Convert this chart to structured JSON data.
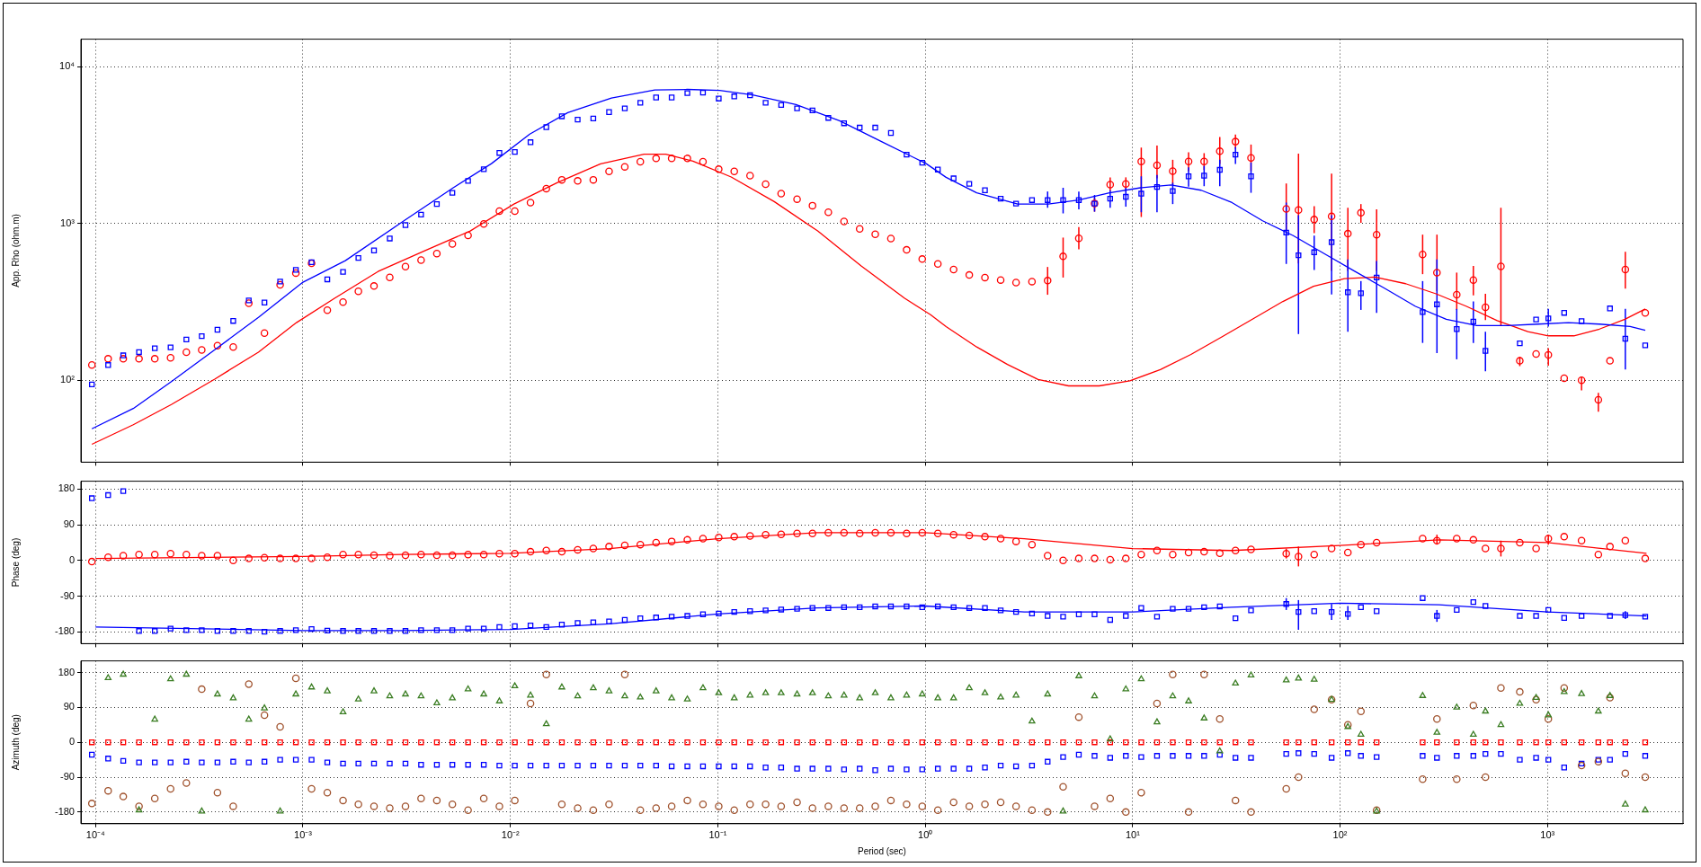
{
  "chart_data": [
    {
      "type": "scatter",
      "ylabel": "App. Rho (ohm.m)",
      "log": "xy",
      "grid": true,
      "tick_labels": "y",
      "xlim": [
        8.5e-05,
        4500
      ],
      "xticks": [
        {
          "value": 0.0001,
          "label": null
        },
        {
          "value": 0.001,
          "label": null
        },
        {
          "value": 0.01,
          "label": null
        },
        {
          "value": 0.1,
          "label": null
        },
        {
          "value": 1,
          "label": null
        },
        {
          "value": 10,
          "label": null
        },
        {
          "value": 100,
          "label": null
        },
        {
          "value": 1000,
          "label": null
        }
      ],
      "ylim": [
        30,
        15000
      ],
      "yticks": [
        {
          "value": 100,
          "label": "10²"
        },
        {
          "value": 1000,
          "label": "10³"
        },
        {
          "value": 10000,
          "label": "10⁴"
        }
      ],
      "x": [
        9.6e-05,
        0.000115,
        0.000136,
        0.000162,
        0.000193,
        0.00023,
        0.000274,
        0.000325,
        0.000387,
        0.000461,
        0.000548,
        0.000652,
        0.000776,
        0.000924,
        0.0011,
        0.00131,
        0.00156,
        0.00185,
        0.0022,
        0.00262,
        0.00312,
        0.00371,
        0.00442,
        0.00525,
        0.00625,
        0.00744,
        0.00885,
        0.0105,
        0.0125,
        0.0149,
        0.0177,
        0.0211,
        0.0251,
        0.0299,
        0.0356,
        0.0423,
        0.0504,
        0.0599,
        0.0713,
        0.0848,
        0.101,
        0.12,
        0.143,
        0.17,
        0.202,
        0.241,
        0.286,
        0.341,
        0.406,
        0.483,
        0.574,
        0.683,
        0.813,
        0.967,
        1.15,
        1.37,
        1.63,
        1.94,
        2.31,
        2.74,
        3.27,
        3.89,
        4.62,
        5.5,
        6.55,
        7.79,
        9.27,
        11,
        13.1,
        15.6,
        18.6,
        22.1,
        26.3,
        31.3,
        37.2,
        55,
        63,
        75,
        91,
        109,
        126,
        150,
        250,
        293,
        365,
        439,
        502,
        596,
        735,
        881,
        1009,
        1203,
        1459,
        1758,
        2000,
        2372,
        2958
      ],
      "series": [
        {
          "type": "line",
          "color": "#0000ff",
          "marker": "none",
          "x": [
            9.6e-05,
            0.000152,
            0.000232,
            0.000377,
            0.00061,
            0.001,
            0.0016,
            0.0031,
            0.0053,
            0.0081,
            0.0124,
            0.0189,
            0.0307,
            0.0497,
            0.0713,
            0.102,
            0.147,
            0.238,
            0.386,
            0.625,
            1.01,
            1.26,
            1.77,
            2.79,
            3.92,
            5.5,
            7.73,
            10.9,
            15.3,
            21.4,
            30.1,
            42.3,
            59.4,
            83.4,
            117,
            165,
            231,
            325,
            456,
            641,
            900,
            1260,
            1780,
            2500,
            2960
          ],
          "values": [
            49,
            66,
            98,
            157,
            252,
            422,
            579,
            1050,
            1690,
            2410,
            3720,
            5100,
            6320,
            7120,
            7170,
            7060,
            6620,
            5740,
            4530,
            3300,
            2410,
            1970,
            1570,
            1330,
            1330,
            1410,
            1570,
            1690,
            1760,
            1630,
            1360,
            1040,
            837,
            645,
            498,
            384,
            296,
            245,
            223,
            223,
            228,
            233,
            228,
            220,
            208
          ]
        },
        {
          "type": "line",
          "color": "#ff0000",
          "marker": "none",
          "x": [
            9.6e-05,
            0.000152,
            0.000232,
            0.000377,
            0.00061,
            0.00093,
            0.00142,
            0.0023,
            0.00395,
            0.0064,
            0.0104,
            0.0168,
            0.0272,
            0.0441,
            0.0561,
            0.0759,
            0.116,
            0.187,
            0.303,
            0.491,
            0.796,
            1.06,
            1.26,
            1.77,
            2.49,
            3.5,
            4.91,
            6.9,
            9.69,
            13.6,
            19.1,
            26.9,
            37.8,
            53,
            74.5,
            105,
            147,
            207,
            290,
            407,
            572,
            804,
            1010,
            1340,
            1780,
            2360,
            2960
          ],
          "values": [
            39,
            52,
            70,
            102,
            151,
            233,
            333,
            494,
            679,
            896,
            1330,
            1820,
            2400,
            2770,
            2770,
            2500,
            1980,
            1380,
            896,
            536,
            333,
            262,
            220,
            163,
            126,
            101,
            92,
            92,
            99,
            117,
            146,
            189,
            245,
            318,
            398,
            445,
            455,
            413,
            356,
            296,
            240,
            204,
            192,
            192,
            212,
            245,
            285
          ]
        },
        {
          "color": "#0000ff",
          "marker": "square",
          "values": [
            94,
            125,
            144,
            151,
            160,
            162,
            182,
            191,
            210,
            239,
            323,
            313,
            426,
            506,
            566,
            440,
            491,
            603,
            673,
            802,
            977,
            1140,
            1330,
            1570,
            1870,
            2220,
            2820,
            2860,
            3300,
            4120,
            4830,
            4600,
            4680,
            5140,
            5430,
            5890,
            6370,
            6370,
            6790,
            6840,
            6270,
            6470,
            6580,
            5890,
            5700,
            5430,
            5270,
            4720,
            4360,
            4090,
            4090,
            3780,
            2750,
            2440,
            2210,
            1940,
            1790,
            1630,
            1440,
            1340,
            1410,
            1410,
            1410,
            1410,
            1340,
            1440,
            1480,
            1550,
            1710,
            1610,
            2000,
            2020,
            2200,
            2750,
            2000,
            875,
            627,
            655,
            760,
            364,
            359,
            452,
            272,
            305,
            212,
            237,
            154,
            null,
            172,
            244,
            248,
            269,
            238,
            null,
            287,
            184,
            167
          ],
          "errors": [
            null,
            null,
            null,
            null,
            null,
            null,
            null,
            null,
            null,
            null,
            null,
            null,
            null,
            null,
            null,
            null,
            null,
            null,
            null,
            null,
            null,
            null,
            null,
            null,
            null,
            null,
            null,
            null,
            null,
            null,
            null,
            null,
            null,
            null,
            null,
            null,
            null,
            null,
            null,
            null,
            null,
            null,
            null,
            null,
            null,
            null,
            null,
            null,
            null,
            null,
            null,
            null,
            null,
            null,
            null,
            null,
            null,
            null,
            null,
            null,
            null,
            [
              1260,
              1600
            ],
            [
              1160,
              1690
            ],
            [
              1230,
              1600
            ],
            [
              1190,
              1520
            ],
            [
              1260,
              1630
            ],
            [
              1280,
              1690
            ],
            [
              1180,
              2000
            ],
            [
              1180,
              2040
            ],
            [
              1330,
              1820
            ],
            [
              1720,
              2280
            ],
            [
              1730,
              2330
            ],
            [
              1730,
              2550
            ],
            [
              2400,
              3070
            ],
            [
              1570,
              2450
            ],
            [
              552,
              1360
            ],
            [
              197,
              1130
            ],
            [
              505,
              837
            ],
            [
              353,
              1130
            ],
            [
              204,
              590
            ],
            [
              281,
              429
            ],
            [
              269,
              577
            ],
            [
              173,
              429
            ],
            [
              149,
              590
            ],
            [
              136,
              285
            ],
            [
              173,
              318
            ],
            [
              114,
              204
            ],
            null,
            null,
            null,
            [
              220,
              285
            ],
            null,
            null,
            null,
            null,
            [
              117,
              285
            ],
            null
          ]
        },
        {
          "color": "#ff0000",
          "marker": "circle",
          "values": [
            125,
            137,
            137,
            137,
            137,
            139,
            151,
            156,
            166,
            163,
            310,
            200,
            406,
            483,
            557,
            280,
            315,
            369,
            399,
            453,
            531,
            584,
            643,
            740,
            840,
            993,
            1200,
            1200,
            1360,
            1670,
            1900,
            1870,
            1900,
            2150,
            2300,
            2480,
            2600,
            2600,
            2600,
            2480,
            2220,
            2150,
            2020,
            1780,
            1550,
            1430,
            1300,
            1180,
            1030,
            924,
            853,
            802,
            679,
            593,
            552,
            508,
            469,
            452,
            436,
            420,
            426,
            432,
            617,
            805,
            1340,
            1770,
            1790,
            2490,
            2350,
            2160,
            2490,
            2490,
            2890,
            3330,
            2620,
            1240,
            1220,
            1060,
            1110,
            861,
            1170,
            849,
            635,
            486,
            351,
            436,
            292,
            532,
            133,
            147,
            145,
            103,
            100,
            75,
            133,
            508,
            269
          ],
          "errors": [
            null,
            null,
            null,
            null,
            null,
            null,
            null,
            null,
            null,
            null,
            null,
            null,
            null,
            null,
            null,
            null,
            null,
            null,
            null,
            null,
            null,
            null,
            null,
            null,
            null,
            null,
            null,
            null,
            null,
            null,
            null,
            null,
            null,
            null,
            null,
            null,
            null,
            null,
            null,
            null,
            null,
            null,
            null,
            null,
            null,
            null,
            null,
            null,
            null,
            null,
            null,
            null,
            null,
            null,
            null,
            null,
            null,
            null,
            null,
            null,
            null,
            [
              351,
              528
            ],
            [
              452,
              813
            ],
            [
              684,
              948
            ],
            [
              1190,
              1460
            ],
            [
              1610,
              1970
            ],
            [
              1610,
              1970
            ],
            [
              1100,
              3050
            ],
            [
              1940,
              3140
            ],
            [
              1760,
              2550
            ],
            [
              2160,
              2850
            ],
            [
              2200,
              2810
            ],
            [
              2400,
              3560
            ],
            [
              3000,
              3700
            ],
            [
              2160,
              3190
            ],
            [
              888,
              1800
            ],
            [
              556,
              2790
            ],
            [
              869,
              1290
            ],
            [
              498,
              2080
            ],
            [
              498,
              1260
            ],
            [
              1010,
              1330
            ],
            [
              498,
              1230
            ],
            [
              475,
              849
            ],
            [
              370,
              849
            ],
            [
              281,
              486
            ],
            [
              348,
              536
            ],
            [
              242,
              356
            ],
            [
              223,
              1260
            ],
            [
              123,
              141
            ],
            null,
            [
              124,
              160
            ],
            null,
            [
              86,
              105
            ],
            [
              63,
              83
            ],
            null,
            [
              384,
              659
            ],
            null
          ]
        }
      ]
    },
    {
      "type": "scatter",
      "ylabel": "Phase (deg)",
      "log": "x",
      "grid": true,
      "tick_labels": "y",
      "xlim": [
        8.5e-05,
        4500
      ],
      "xticks": [
        {
          "value": 0.0001,
          "label": null
        },
        {
          "value": 0.001,
          "label": null
        },
        {
          "value": 0.01,
          "label": null
        },
        {
          "value": 0.1,
          "label": null
        },
        {
          "value": 1,
          "label": null
        },
        {
          "value": 10,
          "label": null
        },
        {
          "value": 100,
          "label": null
        },
        {
          "value": 1000,
          "label": null
        }
      ],
      "ylim": [
        -210,
        200
      ],
      "yticks": [
        -180,
        -90,
        0,
        90,
        180
      ],
      "x": [
        9.6e-05,
        0.000115,
        0.000136,
        0.000162,
        0.000193,
        0.00023,
        0.000274,
        0.000325,
        0.000387,
        0.000461,
        0.000548,
        0.000652,
        0.000776,
        0.000924,
        0.0011,
        0.00131,
        0.00156,
        0.00185,
        0.0022,
        0.00262,
        0.00312,
        0.00371,
        0.00442,
        0.00525,
        0.00625,
        0.00744,
        0.00885,
        0.0105,
        0.0125,
        0.0149,
        0.0177,
        0.0211,
        0.0251,
        0.0299,
        0.0356,
        0.0423,
        0.0504,
        0.0599,
        0.0713,
        0.0848,
        0.101,
        0.12,
        0.143,
        0.17,
        0.202,
        0.241,
        0.286,
        0.341,
        0.406,
        0.483,
        0.574,
        0.683,
        0.813,
        0.967,
        1.15,
        1.37,
        1.63,
        1.94,
        2.31,
        2.74,
        3.27,
        3.89,
        4.62,
        5.5,
        6.55,
        7.79,
        9.27,
        11,
        13.1,
        15.6,
        18.6,
        22.1,
        26.3,
        31.3,
        37.2,
        55,
        63,
        75,
        91,
        109,
        126,
        150,
        250,
        293,
        365,
        439,
        502,
        596,
        735,
        881,
        1009,
        1203,
        1459,
        1758,
        2000,
        2372,
        2958
      ],
      "series": [
        {
          "type": "line",
          "color": "#ff0000",
          "marker": "none",
          "x": [
            0.0001,
            0.001,
            0.003,
            0.01,
            0.03,
            0.1,
            0.3,
            1,
            3,
            10,
            30,
            100,
            300,
            1000,
            3000
          ],
          "values": [
            5,
            10,
            15,
            18,
            30,
            55,
            70,
            70,
            55,
            30,
            25,
            38,
            52,
            45,
            18
          ]
        },
        {
          "type": "line",
          "color": "#0000ff",
          "marker": "none",
          "x": [
            0.0001,
            0.001,
            0.003,
            0.01,
            0.03,
            0.1,
            0.3,
            1,
            3,
            10,
            30,
            100,
            300,
            1000,
            3000
          ],
          "values": [
            -168,
            -177,
            -177,
            -174,
            -160,
            -135,
            -120,
            -115,
            -130,
            -130,
            -118,
            -108,
            -112,
            -130,
            -140
          ]
        },
        {
          "color": "#ff0000",
          "marker": "circle",
          "values": [
            -3,
            8,
            12,
            15,
            15,
            17,
            15,
            12,
            12,
            0,
            5,
            7,
            5,
            5,
            5,
            8,
            15,
            15,
            13,
            12,
            13,
            15,
            13,
            13,
            15,
            15,
            17,
            17,
            22,
            25,
            22,
            27,
            30,
            35,
            38,
            40,
            45,
            48,
            52,
            55,
            58,
            60,
            62,
            65,
            66,
            68,
            68,
            70,
            70,
            68,
            70,
            70,
            68,
            70,
            68,
            65,
            63,
            60,
            55,
            48,
            40,
            12,
            0,
            5,
            5,
            2,
            5,
            15,
            25,
            15,
            20,
            22,
            18,
            25,
            28,
            17,
            10,
            15,
            30,
            20,
            40,
            45,
            55,
            50,
            55,
            52,
            30,
            30,
            45,
            30,
            55,
            60,
            50,
            15,
            35,
            50,
            5
          ],
          "errors": [
            null,
            null,
            null,
            null,
            null,
            null,
            null,
            null,
            null,
            null,
            null,
            null,
            null,
            null,
            null,
            null,
            null,
            null,
            null,
            null,
            null,
            null,
            null,
            null,
            null,
            null,
            null,
            null,
            null,
            null,
            null,
            null,
            null,
            null,
            null,
            null,
            null,
            null,
            null,
            null,
            null,
            null,
            null,
            null,
            null,
            null,
            null,
            null,
            null,
            null,
            null,
            null,
            null,
            null,
            null,
            null,
            null,
            null,
            null,
            null,
            null,
            null,
            null,
            null,
            null,
            null,
            null,
            null,
            null,
            null,
            null,
            null,
            null,
            null,
            null,
            [
              5,
              30
            ],
            [
              -15,
              35
            ],
            null,
            null,
            null,
            null,
            null,
            null,
            [
              40,
              65
            ],
            null,
            null,
            null,
            [
              10,
              50
            ],
            null,
            null,
            [
              40,
              65
            ],
            null,
            null,
            null,
            null,
            null,
            null
          ]
        },
        {
          "color": "#0000ff",
          "marker": "square",
          "values": [
            157,
            165,
            175,
            -178,
            -178,
            -172,
            -176,
            -176,
            -178,
            -178,
            -178,
            -180,
            -178,
            -176,
            -173,
            -177,
            -178,
            -178,
            -178,
            -178,
            -178,
            -176,
            -176,
            -176,
            -172,
            -172,
            -168,
            -166,
            -164,
            -168,
            -162,
            -158,
            -156,
            -154,
            -150,
            -146,
            -144,
            -142,
            -140,
            -136,
            -134,
            -130,
            -128,
            -126,
            -124,
            -122,
            -120,
            -120,
            -118,
            -118,
            -116,
            -116,
            -116,
            -118,
            -116,
            -118,
            -120,
            -120,
            -126,
            -130,
            -134,
            -140,
            -142,
            -136,
            -136,
            -150,
            -140,
            -120,
            -142,
            -122,
            -122,
            -118,
            -116,
            -146,
            -126,
            -110,
            -130,
            -128,
            -130,
            -135,
            -118,
            -128,
            -95,
            -140,
            -125,
            -105,
            -115,
            null,
            -140,
            -140,
            -125,
            -145,
            -140,
            null,
            -140,
            -138,
            -142
          ],
          "errors": [
            null,
            null,
            null,
            null,
            null,
            null,
            null,
            null,
            null,
            null,
            null,
            null,
            null,
            null,
            null,
            null,
            null,
            null,
            null,
            null,
            null,
            null,
            null,
            null,
            null,
            null,
            null,
            null,
            null,
            null,
            null,
            null,
            null,
            null,
            null,
            null,
            null,
            null,
            null,
            null,
            null,
            null,
            null,
            null,
            null,
            null,
            null,
            null,
            null,
            null,
            null,
            null,
            null,
            null,
            null,
            null,
            null,
            null,
            null,
            null,
            null,
            null,
            null,
            null,
            null,
            null,
            null,
            null,
            null,
            null,
            null,
            null,
            null,
            null,
            null,
            [
              -125,
              -95
            ],
            [
              -175,
              -100
            ],
            null,
            [
              -150,
              -110
            ],
            [
              -150,
              -115
            ],
            null,
            null,
            null,
            [
              -155,
              -125
            ],
            null,
            null,
            null,
            null,
            null,
            null,
            null,
            null,
            null,
            null,
            null,
            [
              -148,
              -128
            ],
            null
          ]
        }
      ]
    },
    {
      "type": "scatter",
      "ylabel": "Azimuth (deg)",
      "xlabel": "Period (sec)",
      "log": "x",
      "grid": true,
      "xlim": [
        8.5e-05,
        4500
      ],
      "xticks": [
        {
          "value": 0.0001,
          "label": "10⁻⁴"
        },
        {
          "value": 0.001,
          "label": "10⁻³"
        },
        {
          "value": 0.01,
          "label": "10⁻²"
        },
        {
          "value": 0.1,
          "label": "10⁻¹"
        },
        {
          "value": 1,
          "label": "10⁰"
        },
        {
          "value": 10,
          "label": "10¹"
        },
        {
          "value": 100,
          "label": "10²"
        },
        {
          "value": 1000,
          "label": "10³"
        }
      ],
      "ylim": [
        -210,
        210
      ],
      "yticks": [
        -180,
        -90,
        0,
        90,
        180
      ],
      "x": [
        9.6e-05,
        0.000115,
        0.000136,
        0.000162,
        0.000193,
        0.00023,
        0.000274,
        0.000325,
        0.000387,
        0.000461,
        0.000548,
        0.000652,
        0.000776,
        0.000924,
        0.0011,
        0.00131,
        0.00156,
        0.00185,
        0.0022,
        0.00262,
        0.00312,
        0.00371,
        0.00442,
        0.00525,
        0.00625,
        0.00744,
        0.00885,
        0.0105,
        0.0125,
        0.0149,
        0.0177,
        0.0211,
        0.0251,
        0.0299,
        0.0356,
        0.0423,
        0.0504,
        0.0599,
        0.0713,
        0.0848,
        0.101,
        0.12,
        0.143,
        0.17,
        0.202,
        0.241,
        0.286,
        0.341,
        0.406,
        0.483,
        0.574,
        0.683,
        0.813,
        0.967,
        1.15,
        1.37,
        1.63,
        1.94,
        2.31,
        2.74,
        3.27,
        3.89,
        4.62,
        5.5,
        6.55,
        7.79,
        9.27,
        11,
        13.1,
        15.6,
        18.6,
        22.1,
        26.3,
        31.3,
        37.2,
        55,
        63,
        75,
        91,
        109,
        126,
        150,
        250,
        293,
        365,
        439,
        502,
        596,
        735,
        881,
        1009,
        1203,
        1459,
        1758,
        2000,
        2372,
        2958
      ],
      "series": [
        {
          "color": "#3a7d22",
          "marker": "triangle",
          "values": [
            null,
            166,
            175,
            -175,
            59,
            163,
            175,
            -178,
            124,
            114,
            59,
            88,
            -178,
            124,
            142,
            132,
            78,
            111,
            132,
            119,
            124,
            119,
            101,
            114,
            137,
            124,
            106,
            145,
            121,
            47,
            142,
            119,
            140,
            132,
            119,
            116,
            132,
            114,
            111,
            140,
            127,
            114,
            121,
            127,
            127,
            124,
            127,
            119,
            121,
            114,
            127,
            114,
            121,
            124,
            114,
            114,
            140,
            127,
            116,
            121,
            54,
            124,
            -178,
            171,
            119,
            8,
            137,
            163,
            52,
            119,
            106,
            62,
            -23,
            152,
            173,
            160,
            165,
            162,
            110,
            40,
            20,
            -178,
            120,
            25,
            90,
            20,
            80,
            45,
            100,
            115,
            70,
            130,
            125,
            80,
            120,
            -160,
            -175
          ]
        },
        {
          "color": "#a0522d",
          "marker": "circle",
          "values": [
            -158,
            -125,
            -140,
            -165,
            -145,
            -120,
            -105,
            137,
            -130,
            -165,
            150,
            70,
            40,
            165,
            -120,
            -130,
            -150,
            -160,
            -165,
            -170,
            -165,
            -145,
            -150,
            -160,
            -175,
            -145,
            -165,
            -150,
            100,
            175,
            -160,
            -170,
            -175,
            -160,
            175,
            -175,
            -170,
            -165,
            -150,
            -160,
            -165,
            -175,
            -160,
            -160,
            -165,
            -155,
            -170,
            -165,
            -170,
            -170,
            -165,
            -150,
            -160,
            -165,
            -175,
            -155,
            -165,
            -160,
            -155,
            -165,
            -175,
            -180,
            -115,
            65,
            -165,
            -145,
            -180,
            -130,
            100,
            175,
            -180,
            175,
            60,
            -150,
            -180,
            -120,
            -90,
            85,
            110,
            45,
            80,
            -175,
            -95,
            60,
            -95,
            95,
            -90,
            140,
            130,
            110,
            60,
            140,
            -60,
            -50,
            115,
            -80,
            -90
          ]
        },
        {
          "color": "#ff0000",
          "marker": "square",
          "values": [
            0,
            0,
            0,
            0,
            0,
            0,
            0,
            0,
            0,
            0,
            0,
            0,
            0,
            0,
            0,
            0,
            0,
            0,
            0,
            0,
            0,
            0,
            0,
            0,
            0,
            0,
            0,
            0,
            0,
            0,
            0,
            0,
            0,
            0,
            0,
            0,
            0,
            0,
            0,
            0,
            0,
            0,
            0,
            0,
            0,
            0,
            0,
            0,
            0,
            0,
            0,
            0,
            0,
            0,
            0,
            0,
            0,
            0,
            0,
            0,
            0,
            0,
            0,
            0,
            0,
            0,
            0,
            0,
            0,
            0,
            0,
            0,
            0,
            0,
            0,
            0,
            0,
            0,
            0,
            0,
            0,
            0,
            0,
            0,
            0,
            0,
            0,
            0,
            0,
            0,
            0,
            0,
            0,
            0,
            0,
            0,
            0
          ]
        },
        {
          "color": "#0000ff",
          "marker": "square",
          "values": [
            -32,
            -42,
            -48,
            -52,
            -52,
            -52,
            -50,
            -52,
            -52,
            -50,
            -52,
            -50,
            -45,
            -45,
            -45,
            -52,
            -55,
            -55,
            -55,
            -55,
            -55,
            -58,
            -58,
            -58,
            -58,
            -58,
            -60,
            -60,
            -60,
            -60,
            -60,
            -60,
            -60,
            -60,
            -60,
            -60,
            -60,
            -62,
            -62,
            -62,
            -62,
            -62,
            -62,
            -65,
            -65,
            -68,
            -68,
            -68,
            -70,
            -68,
            -72,
            -68,
            -70,
            -70,
            -68,
            -68,
            -68,
            -65,
            -60,
            -62,
            -60,
            -50,
            -38,
            -32,
            -35,
            -40,
            -35,
            -38,
            -35,
            -35,
            -35,
            -35,
            -32,
            -40,
            -40,
            -30,
            -28,
            -30,
            -40,
            -28,
            -35,
            -38,
            -35,
            -40,
            -35,
            -35,
            -30,
            -30,
            -45,
            -40,
            -45,
            -65,
            -55,
            -45,
            -45,
            -30,
            -35
          ]
        }
      ]
    }
  ]
}
